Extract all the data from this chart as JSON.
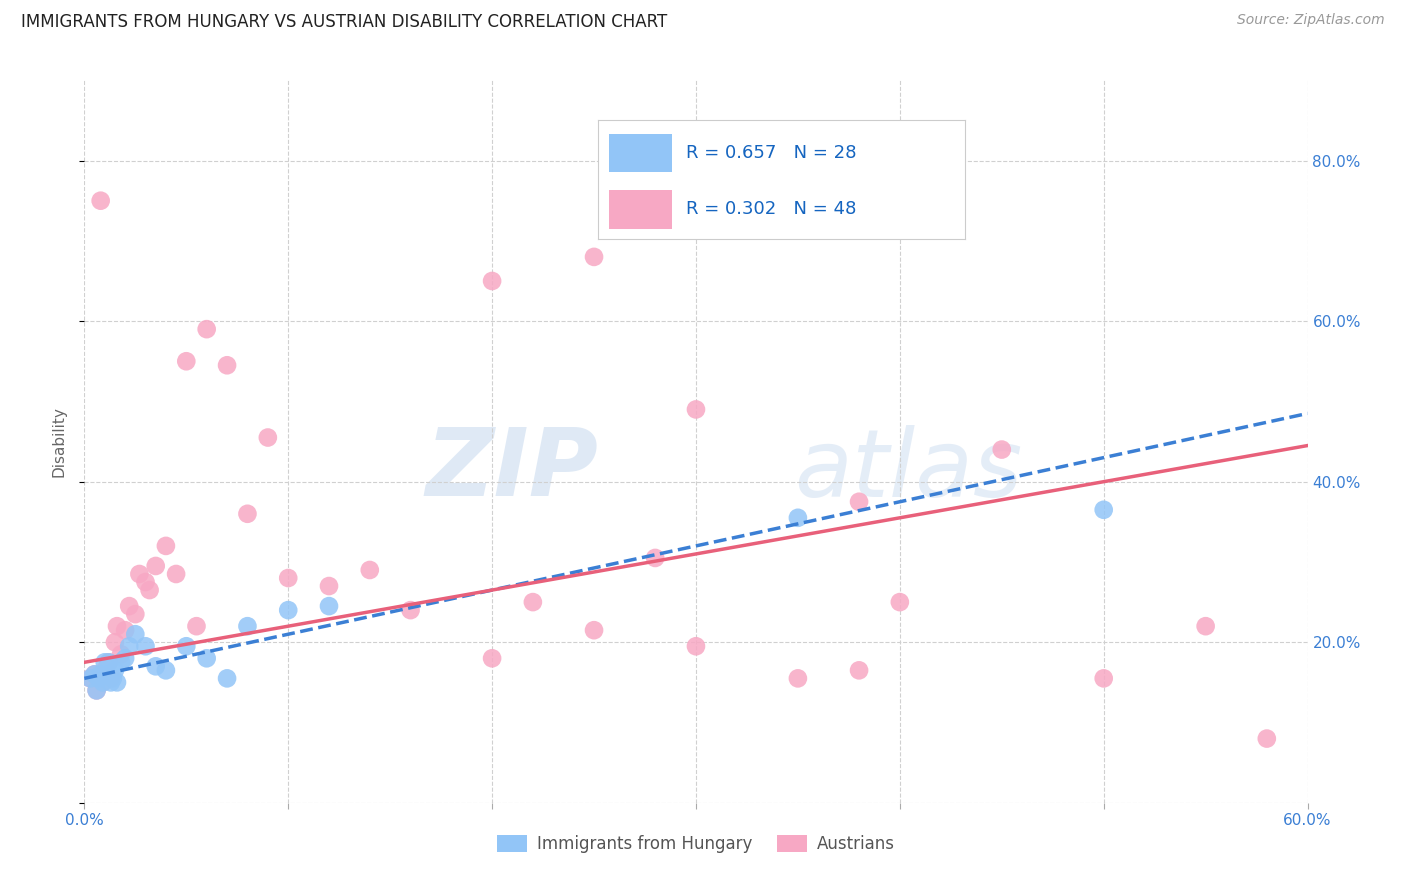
{
  "title": "IMMIGRANTS FROM HUNGARY VS AUSTRIAN DISABILITY CORRELATION CHART",
  "source": "Source: ZipAtlas.com",
  "ylabel": "Disability",
  "xlim": [
    0.0,
    0.6
  ],
  "ylim": [
    0.0,
    0.9
  ],
  "xticks": [
    0.0,
    0.1,
    0.2,
    0.3,
    0.4,
    0.5,
    0.6
  ],
  "xtick_labels": [
    "0.0%",
    "",
    "",
    "",
    "",
    "",
    "60.0%"
  ],
  "yticks": [
    0.0,
    0.2,
    0.4,
    0.6,
    0.8
  ],
  "ytick_labels_right": [
    "",
    "20.0%",
    "40.0%",
    "60.0%",
    "80.0%"
  ],
  "blue_color": "#92C5F7",
  "pink_color": "#F7A8C4",
  "blue_line_color": "#3B7FD4",
  "pink_line_color": "#E8607A",
  "watermark_zip": "ZIP",
  "watermark_atlas": "atlas",
  "blue_scatter_x": [
    0.003,
    0.005,
    0.006,
    0.007,
    0.008,
    0.009,
    0.01,
    0.011,
    0.012,
    0.013,
    0.014,
    0.015,
    0.016,
    0.018,
    0.02,
    0.022,
    0.025,
    0.03,
    0.035,
    0.04,
    0.05,
    0.06,
    0.07,
    0.08,
    0.1,
    0.12,
    0.35,
    0.5
  ],
  "blue_scatter_y": [
    0.155,
    0.16,
    0.14,
    0.155,
    0.16,
    0.15,
    0.175,
    0.16,
    0.175,
    0.15,
    0.155,
    0.165,
    0.15,
    0.175,
    0.18,
    0.195,
    0.21,
    0.195,
    0.17,
    0.165,
    0.195,
    0.18,
    0.155,
    0.22,
    0.24,
    0.245,
    0.355,
    0.365
  ],
  "pink_scatter_x": [
    0.003,
    0.005,
    0.006,
    0.007,
    0.008,
    0.009,
    0.01,
    0.011,
    0.012,
    0.013,
    0.015,
    0.016,
    0.018,
    0.02,
    0.022,
    0.025,
    0.027,
    0.03,
    0.032,
    0.035,
    0.04,
    0.045,
    0.05,
    0.055,
    0.06,
    0.07,
    0.08,
    0.09,
    0.1,
    0.12,
    0.14,
    0.16,
    0.2,
    0.22,
    0.25,
    0.28,
    0.3,
    0.35,
    0.38,
    0.4,
    0.45,
    0.5,
    0.55,
    0.58,
    0.2,
    0.25,
    0.3,
    0.38
  ],
  "pink_scatter_y": [
    0.155,
    0.16,
    0.14,
    0.155,
    0.75,
    0.15,
    0.165,
    0.16,
    0.175,
    0.155,
    0.2,
    0.22,
    0.185,
    0.215,
    0.245,
    0.235,
    0.285,
    0.275,
    0.265,
    0.295,
    0.32,
    0.285,
    0.55,
    0.22,
    0.59,
    0.545,
    0.36,
    0.455,
    0.28,
    0.27,
    0.29,
    0.24,
    0.18,
    0.25,
    0.215,
    0.305,
    0.195,
    0.155,
    0.165,
    0.25,
    0.44,
    0.155,
    0.22,
    0.08,
    0.65,
    0.68,
    0.49,
    0.375
  ],
  "blue_line_x0": 0.0,
  "blue_line_y0": 0.155,
  "blue_line_x1": 0.6,
  "blue_line_y1": 0.485,
  "pink_line_x0": 0.0,
  "pink_line_y0": 0.175,
  "pink_line_x1": 0.6,
  "pink_line_y1": 0.445,
  "legend_blue_text": "R = 0.657   N = 28",
  "legend_pink_text": "R = 0.302   N = 48",
  "legend_label_blue": "Immigrants from Hungary",
  "legend_label_pink": "Austrians",
  "title_fontsize": 12,
  "source_fontsize": 10,
  "tick_fontsize": 11,
  "ylabel_fontsize": 11
}
